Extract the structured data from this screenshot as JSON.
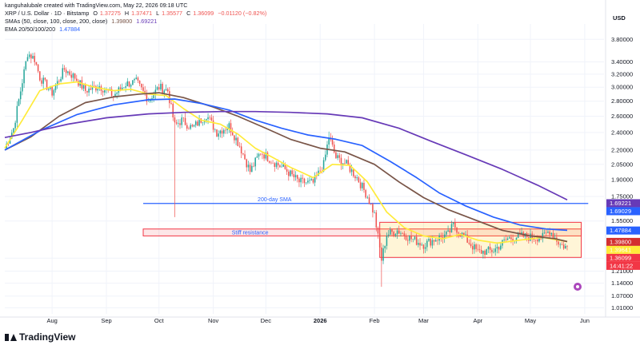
{
  "header": {
    "attribution": "kanguhalubale created with TradingView.com, May 22, 2026 09:18 UTC",
    "symbol": "XRP / U.S. Dollar · 1D · Bitstamp",
    "o_label": "O",
    "o_value": "1.37275",
    "h_label": "H",
    "h_value": "1.37471",
    "l_label": "L",
    "l_value": "1.35577",
    "c_label": "C",
    "c_value": "1.36099",
    "change": "−0.01120 (−0.82%)",
    "sma_label": "SMAs (50, close, 100, close, 200, close)",
    "sma_value1": "1.39800",
    "sma_value2": "1.69221",
    "ema_label": "EMA 20/50/100/200",
    "ema_value": "1.47884",
    "currency": "USD"
  },
  "brand": {
    "name": "TradingView"
  },
  "colors": {
    "up": "#26a69a",
    "down": "#ef5350",
    "ema20": "#ffeb3b",
    "ema50": "#795548",
    "ema100": "#2962ff",
    "ema200": "#673ab7",
    "annotation": "#f23645",
    "sma_line": "#2962ff"
  },
  "chart_data": {
    "type": "line",
    "log_scale": true,
    "ylim": [
      0.98,
      4.1
    ],
    "xlim": [
      "2025-07-05",
      "2026-06-12"
    ],
    "y_ticks": [
      {
        "value": 3.8,
        "label": "3.80000"
      },
      {
        "value": 3.4,
        "label": "3.40000"
      },
      {
        "value": 3.2,
        "label": "3.20000"
      },
      {
        "value": 3.0,
        "label": "3.00000"
      },
      {
        "value": 2.8,
        "label": "2.80000"
      },
      {
        "value": 2.6,
        "label": "2.60000"
      },
      {
        "value": 2.4,
        "label": "2.40000"
      },
      {
        "value": 2.2,
        "label": "2.20000"
      },
      {
        "value": 2.05,
        "label": "2.05000"
      },
      {
        "value": 1.9,
        "label": "1.90000"
      },
      {
        "value": 1.75,
        "label": "1.75000"
      },
      {
        "value": 1.55,
        "label": "1.55000"
      },
      {
        "value": 1.29,
        "label": "1.29000"
      },
      {
        "value": 1.21,
        "label": "1.21000"
      },
      {
        "value": 1.14,
        "label": "1.14000"
      },
      {
        "value": 1.07,
        "label": "1.07000"
      },
      {
        "value": 1.01,
        "label": "1.01000"
      }
    ],
    "x_ticks": [
      {
        "date": "2025-08-01",
        "label": "Aug"
      },
      {
        "date": "2025-09-01",
        "label": "Sep"
      },
      {
        "date": "2025-10-01",
        "label": "Oct"
      },
      {
        "date": "2025-11-01",
        "label": "Nov"
      },
      {
        "date": "2025-12-01",
        "label": "Dec"
      },
      {
        "date": "2026-01-01",
        "label": "2026"
      },
      {
        "date": "2026-02-01",
        "label": "Feb"
      },
      {
        "date": "2026-03-01",
        "label": "Mar"
      },
      {
        "date": "2026-04-01",
        "label": "Apr"
      },
      {
        "date": "2026-05-01",
        "label": "May"
      },
      {
        "date": "2026-06-01",
        "label": "Jun"
      }
    ],
    "price_path": [
      [
        "2025-07-05",
        2.22
      ],
      [
        "2025-07-10",
        2.45
      ],
      [
        "2025-07-14",
        2.95
      ],
      [
        "2025-07-18",
        3.55
      ],
      [
        "2025-07-22",
        3.45
      ],
      [
        "2025-07-25",
        3.15
      ],
      [
        "2025-08-01",
        2.92
      ],
      [
        "2025-08-08",
        3.28
      ],
      [
        "2025-08-14",
        3.15
      ],
      [
        "2025-08-20",
        2.95
      ],
      [
        "2025-08-28",
        3.02
      ],
      [
        "2025-09-05",
        2.88
      ],
      [
        "2025-09-12",
        3.05
      ],
      [
        "2025-09-18",
        3.08
      ],
      [
        "2025-09-25",
        2.82
      ],
      [
        "2025-10-01",
        3.0
      ],
      [
        "2025-10-06",
        2.95
      ],
      [
        "2025-10-10",
        2.48
      ],
      [
        "2025-10-14",
        2.55
      ],
      [
        "2025-10-20",
        2.45
      ],
      [
        "2025-10-28",
        2.62
      ],
      [
        "2025-11-03",
        2.4
      ],
      [
        "2025-11-10",
        2.48
      ],
      [
        "2025-11-16",
        2.25
      ],
      [
        "2025-11-22",
        1.98
      ],
      [
        "2025-11-28",
        2.18
      ],
      [
        "2025-12-05",
        2.08
      ],
      [
        "2025-12-12",
        2.0
      ],
      [
        "2025-12-20",
        1.88
      ],
      [
        "2025-12-28",
        1.87
      ],
      [
        "2026-01-03",
        2.05
      ],
      [
        "2026-01-06",
        2.35
      ],
      [
        "2026-01-10",
        2.12
      ],
      [
        "2026-01-16",
        2.05
      ],
      [
        "2026-01-22",
        1.92
      ],
      [
        "2026-01-28",
        1.75
      ],
      [
        "2026-02-01",
        1.6
      ],
      [
        "2026-02-05",
        1.28
      ],
      [
        "2026-02-08",
        1.45
      ],
      [
        "2026-02-14",
        1.48
      ],
      [
        "2026-02-22",
        1.42
      ],
      [
        "2026-03-01",
        1.38
      ],
      [
        "2026-03-08",
        1.42
      ],
      [
        "2026-03-15",
        1.45
      ],
      [
        "2026-03-18",
        1.52
      ],
      [
        "2026-03-25",
        1.42
      ],
      [
        "2026-04-01",
        1.33
      ],
      [
        "2026-04-10",
        1.34
      ],
      [
        "2026-04-18",
        1.42
      ],
      [
        "2026-04-25",
        1.44
      ],
      [
        "2026-05-02",
        1.43
      ],
      [
        "2026-05-08",
        1.43
      ],
      [
        "2026-05-12",
        1.48
      ],
      [
        "2026-05-18",
        1.38
      ],
      [
        "2026-05-22",
        1.36
      ]
    ],
    "wicks": [
      {
        "date": "2025-10-10",
        "low": 1.58
      },
      {
        "date": "2026-02-05",
        "low": 1.12
      },
      {
        "date": "2026-01-06",
        "high": 2.41
      }
    ],
    "series": [
      {
        "name": "EMA 20",
        "color": "#ffeb3b",
        "points": [
          [
            "2025-07-05",
            2.22
          ],
          [
            "2025-07-15",
            2.55
          ],
          [
            "2025-07-25",
            2.95
          ],
          [
            "2025-08-05",
            3.05
          ],
          [
            "2025-08-15",
            3.08
          ],
          [
            "2025-08-25",
            3.0
          ],
          [
            "2025-09-05",
            2.95
          ],
          [
            "2025-09-15",
            2.97
          ],
          [
            "2025-09-25",
            2.9
          ],
          [
            "2025-10-05",
            2.88
          ],
          [
            "2025-10-15",
            2.7
          ],
          [
            "2025-10-25",
            2.55
          ],
          [
            "2025-11-05",
            2.5
          ],
          [
            "2025-11-15",
            2.38
          ],
          [
            "2025-11-25",
            2.22
          ],
          [
            "2025-12-05",
            2.12
          ],
          [
            "2025-12-15",
            2.02
          ],
          [
            "2025-12-28",
            1.92
          ],
          [
            "2026-01-08",
            2.05
          ],
          [
            "2026-01-18",
            2.04
          ],
          [
            "2026-01-28",
            1.88
          ],
          [
            "2026-02-08",
            1.62
          ],
          [
            "2026-02-18",
            1.5
          ],
          [
            "2026-03-01",
            1.44
          ],
          [
            "2026-03-12",
            1.42
          ],
          [
            "2026-03-22",
            1.45
          ],
          [
            "2026-04-01",
            1.41
          ],
          [
            "2026-04-12",
            1.39
          ],
          [
            "2026-04-25",
            1.41
          ],
          [
            "2026-05-08",
            1.43
          ],
          [
            "2026-05-22",
            1.4
          ]
        ]
      },
      {
        "name": "EMA 50",
        "color": "#795548",
        "points": [
          [
            "2025-07-05",
            2.2
          ],
          [
            "2025-07-20",
            2.35
          ],
          [
            "2025-08-05",
            2.6
          ],
          [
            "2025-08-20",
            2.78
          ],
          [
            "2025-09-05",
            2.86
          ],
          [
            "2025-09-20",
            2.9
          ],
          [
            "2025-10-01",
            2.92
          ],
          [
            "2025-10-15",
            2.85
          ],
          [
            "2025-11-01",
            2.72
          ],
          [
            "2025-11-15",
            2.6
          ],
          [
            "2025-12-01",
            2.45
          ],
          [
            "2025-12-15",
            2.32
          ],
          [
            "2026-01-01",
            2.22
          ],
          [
            "2026-01-15",
            2.18
          ],
          [
            "2026-02-01",
            2.05
          ],
          [
            "2026-02-15",
            1.88
          ],
          [
            "2026-03-01",
            1.74
          ],
          [
            "2026-03-15",
            1.64
          ],
          [
            "2026-04-01",
            1.55
          ],
          [
            "2026-04-15",
            1.48
          ],
          [
            "2026-05-01",
            1.44
          ],
          [
            "2026-05-15",
            1.42
          ],
          [
            "2026-05-22",
            1.4
          ]
        ]
      },
      {
        "name": "EMA 100",
        "color": "#2962ff",
        "points": [
          [
            "2025-07-05",
            2.2
          ],
          [
            "2025-07-25",
            2.42
          ],
          [
            "2025-08-15",
            2.62
          ],
          [
            "2025-09-05",
            2.75
          ],
          [
            "2025-09-25",
            2.82
          ],
          [
            "2025-10-10",
            2.83
          ],
          [
            "2025-10-25",
            2.77
          ],
          [
            "2025-11-10",
            2.68
          ],
          [
            "2025-11-25",
            2.55
          ],
          [
            "2025-12-10",
            2.45
          ],
          [
            "2025-12-25",
            2.37
          ],
          [
            "2026-01-10",
            2.32
          ],
          [
            "2026-01-25",
            2.25
          ],
          [
            "2026-02-10",
            2.08
          ],
          [
            "2026-02-25",
            1.92
          ],
          [
            "2026-03-10",
            1.78
          ],
          [
            "2026-03-25",
            1.67
          ],
          [
            "2026-04-10",
            1.58
          ],
          [
            "2026-04-25",
            1.52
          ],
          [
            "2026-05-10",
            1.49
          ],
          [
            "2026-05-22",
            1.48
          ]
        ]
      },
      {
        "name": "EMA 200",
        "color": "#673ab7",
        "points": [
          [
            "2025-07-05",
            2.34
          ],
          [
            "2025-07-20",
            2.4
          ],
          [
            "2025-08-10",
            2.5
          ],
          [
            "2025-09-01",
            2.58
          ],
          [
            "2025-09-25",
            2.63
          ],
          [
            "2025-10-15",
            2.65
          ],
          [
            "2025-11-05",
            2.66
          ],
          [
            "2025-11-25",
            2.66
          ],
          [
            "2025-12-15",
            2.65
          ],
          [
            "2026-01-05",
            2.63
          ],
          [
            "2026-01-25",
            2.58
          ],
          [
            "2026-02-15",
            2.45
          ],
          [
            "2026-03-05",
            2.3
          ],
          [
            "2026-03-25",
            2.15
          ],
          [
            "2026-04-15",
            2.0
          ],
          [
            "2026-05-05",
            1.85
          ],
          [
            "2026-05-22",
            1.72
          ]
        ]
      }
    ],
    "annotations": [
      {
        "type": "hline",
        "value": 1.69,
        "label": "200-day SMA",
        "label_date": "2025-12-06",
        "start": "2025-09-22",
        "end": "2026-06-03"
      },
      {
        "type": "zone",
        "low": 1.44,
        "high": 1.49,
        "label": "Stiff resistance",
        "label_date": "2025-11-22",
        "start": "2025-09-22",
        "end": "2026-05-30"
      },
      {
        "type": "zone",
        "low": 1.295,
        "high": 1.54,
        "label": "",
        "start": "2026-02-04",
        "end": "2026-05-30"
      }
    ],
    "price_badges": [
      {
        "value": 1.69221,
        "label": "1.69221",
        "color": "#673ab7"
      },
      {
        "value": 1.69029,
        "label": "1.69029",
        "color": "#2962ff"
      },
      {
        "value": 1.47884,
        "label": "1.47884",
        "color": "#2962ff"
      },
      {
        "value": 1.398,
        "label": "1.39800",
        "color": "#d32f2f"
      },
      {
        "value": 1.39641,
        "label": "1.39641",
        "color": "#ffeb3b",
        "text_color": "#131722"
      },
      {
        "value": 1.36099,
        "label": "1.36099",
        "color": "#f23645"
      },
      {
        "value": 1.355,
        "label": "14:41:22",
        "color": "#f23645"
      }
    ]
  }
}
